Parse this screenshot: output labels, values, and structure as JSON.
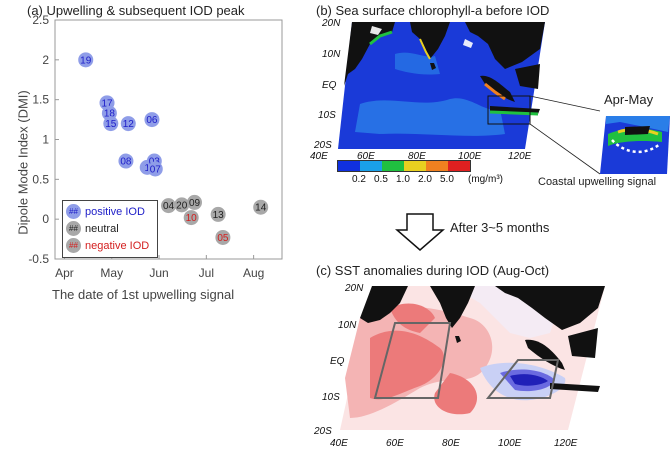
{
  "panel_a": {
    "title": "(a) Upwelling & subsequent IOD peak",
    "ylabel": "Dipole Mode Index (DMI)",
    "xlabel": "The date of 1st upwelling signal",
    "legend": [
      {
        "marker": "##",
        "label": "positive IOD",
        "color": "#1d1dc8"
      },
      {
        "marker": "##",
        "label": "neutral",
        "color": "#222222"
      },
      {
        "marker": "##",
        "label": "negative IOD",
        "color": "#d42020"
      }
    ]
  },
  "panel_b": {
    "title": "(b) Sea surface chlorophyll-a before IOD",
    "inset_title": "Apr-May",
    "inset_caption": "Coastal upwelling signal",
    "colorbar_ticks": [
      "0.2",
      "0.5",
      "1.0",
      "2.0",
      "5.0"
    ],
    "colorbar_unit": "(mg/m³)",
    "colorbar_colors": [
      "#1030e0",
      "#1aa0e8",
      "#20c040",
      "#e8d020",
      "#f08020",
      "#e02020"
    ],
    "lat_labels": [
      "20N",
      "10N",
      "EQ",
      "10S",
      "20S"
    ],
    "lon_labels": [
      "40E",
      "60E",
      "80E",
      "100E",
      "120E"
    ]
  },
  "arrow_text": "After 3~5 months",
  "panel_c": {
    "title": "(c) SST anomalies during IOD (Aug-Oct)",
    "lat_labels": [
      "20N",
      "10N",
      "EQ",
      "10S",
      "20S"
    ],
    "lon_labels": [
      "40E",
      "60E",
      "80E",
      "100E",
      "120E"
    ]
  },
  "chart_data": {
    "type": "scatter",
    "xlabel": "The date of 1st upwelling signal",
    "ylabel": "Dipole Mode Index (DMI)",
    "x_ticks": [
      "Apr",
      "May",
      "Jun",
      "Jul",
      "Aug"
    ],
    "y_ticks": [
      -0.5,
      0,
      0.5,
      1,
      1.5,
      2,
      2.5
    ],
    "ylim": [
      -0.5,
      2.5
    ],
    "grid": false,
    "legend_position": "bottom-left",
    "points": [
      {
        "label": "19",
        "month": 4.45,
        "dmi": 2.0,
        "class": "positive"
      },
      {
        "label": "17",
        "month": 4.9,
        "dmi": 1.46,
        "class": "positive"
      },
      {
        "label": "18",
        "month": 4.95,
        "dmi": 1.33,
        "class": "positive"
      },
      {
        "label": "15",
        "month": 4.98,
        "dmi": 1.2,
        "class": "positive"
      },
      {
        "label": "12",
        "month": 5.35,
        "dmi": 1.2,
        "class": "positive"
      },
      {
        "label": "06",
        "month": 5.85,
        "dmi": 1.25,
        "class": "positive"
      },
      {
        "label": "08",
        "month": 5.3,
        "dmi": 0.73,
        "class": "positive"
      },
      {
        "label": "1",
        "month": 5.75,
        "dmi": 0.65,
        "class": "positive"
      },
      {
        "label": "03",
        "month": 5.9,
        "dmi": 0.73,
        "class": "positive"
      },
      {
        "label": "07",
        "month": 5.92,
        "dmi": 0.63,
        "class": "positive"
      },
      {
        "label": "04",
        "month": 6.2,
        "dmi": 0.17,
        "class": "neutral"
      },
      {
        "label": "20",
        "month": 6.48,
        "dmi": 0.18,
        "class": "neutral"
      },
      {
        "label": "09",
        "month": 6.75,
        "dmi": 0.21,
        "class": "neutral"
      },
      {
        "label": "10",
        "month": 6.68,
        "dmi": 0.02,
        "class": "negative"
      },
      {
        "label": "13",
        "month": 7.25,
        "dmi": 0.06,
        "class": "neutral"
      },
      {
        "label": "05",
        "month": 7.35,
        "dmi": -0.23,
        "class": "negative"
      },
      {
        "label": "14",
        "month": 8.15,
        "dmi": 0.15,
        "class": "neutral"
      }
    ],
    "class_colors": {
      "positive": "#1d1dc8",
      "neutral": "#222222",
      "negative": "#d42020"
    },
    "class_fills": {
      "positive": "#8f9de8",
      "neutral": "#a8a8a8",
      "negative": "#a8a8a8"
    }
  }
}
